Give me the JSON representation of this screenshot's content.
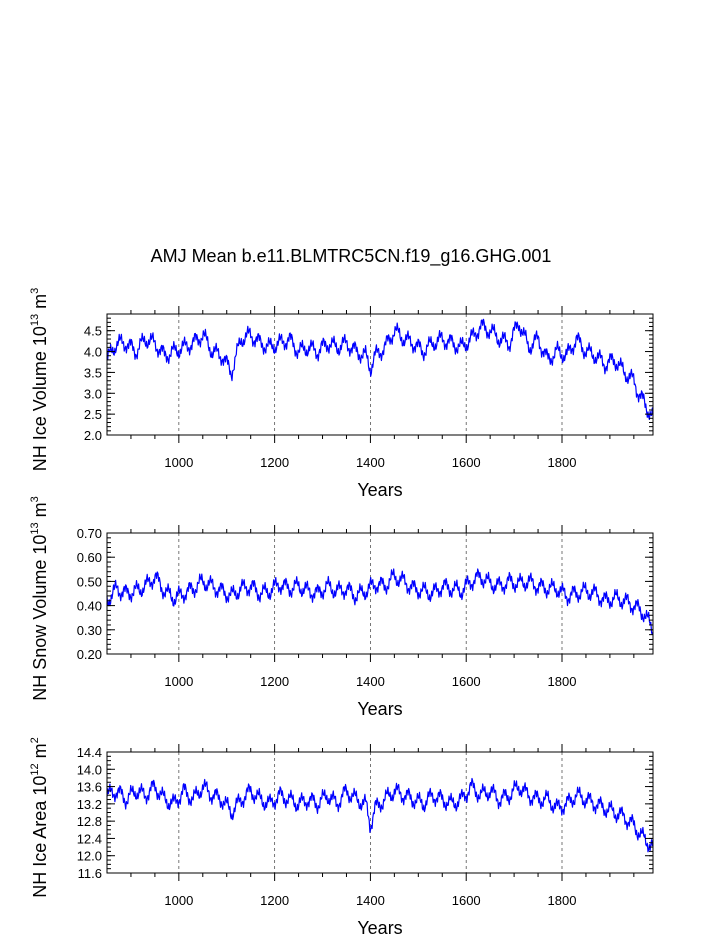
{
  "figure": {
    "title": "AMJ Mean b.e11.BLMTRC5CN.f19_g16.GHG.001",
    "line_color": "#0000ff"
  },
  "chart_data": [
    {
      "type": "line",
      "id": "ice-volume",
      "ylabel": {
        "prefix": "NH Ice Volume 10",
        "exp1": "13",
        "mid": " m",
        "exp2": "3"
      },
      "xlabel": "Years",
      "xlim": [
        850,
        1990
      ],
      "ylim": [
        2.0,
        4.9
      ],
      "xticks": [
        1000,
        1200,
        1400,
        1600,
        1800
      ],
      "yticks": [
        2.0,
        2.5,
        3.0,
        3.5,
        4.0,
        4.5
      ],
      "ytick_labels": [
        "2.0",
        "2.5",
        "3.0",
        "3.5",
        "4.0",
        "4.5"
      ],
      "yminor_step": 0.1,
      "grid_x": true,
      "x": [
        850,
        870,
        890,
        910,
        930,
        950,
        970,
        990,
        1010,
        1030,
        1050,
        1070,
        1090,
        1110,
        1130,
        1150,
        1170,
        1190,
        1210,
        1230,
        1250,
        1270,
        1290,
        1310,
        1330,
        1350,
        1370,
        1390,
        1400,
        1410,
        1430,
        1450,
        1470,
        1490,
        1510,
        1530,
        1550,
        1570,
        1590,
        1610,
        1630,
        1650,
        1670,
        1690,
        1710,
        1730,
        1750,
        1770,
        1790,
        1810,
        1830,
        1850,
        1870,
        1890,
        1910,
        1930,
        1950,
        1960,
        1970,
        1980,
        1990
      ],
      "y": [
        3.8,
        4.2,
        4.2,
        4.0,
        4.3,
        4.2,
        3.9,
        4.0,
        4.1,
        4.2,
        4.4,
        4.0,
        3.9,
        3.5,
        4.3,
        4.4,
        4.2,
        4.1,
        4.2,
        4.3,
        4.0,
        4.1,
        4.0,
        4.2,
        4.1,
        4.2,
        4.0,
        3.9,
        3.6,
        3.9,
        4.1,
        4.5,
        4.3,
        4.2,
        4.0,
        4.2,
        4.3,
        4.2,
        4.1,
        4.3,
        4.6,
        4.5,
        4.3,
        4.2,
        4.7,
        4.1,
        4.3,
        3.8,
        4.0,
        3.9,
        4.3,
        4.0,
        3.9,
        3.7,
        3.8,
        3.5,
        3.3,
        3.0,
        2.8,
        2.6,
        2.4
      ]
    },
    {
      "type": "line",
      "id": "snow-volume",
      "ylabel": {
        "prefix": "NH Snow Volume 10",
        "exp1": "13",
        "mid": " m",
        "exp2": "3"
      },
      "xlabel": "Years",
      "xlim": [
        850,
        1990
      ],
      "ylim": [
        0.2,
        0.7
      ],
      "xticks": [
        1000,
        1200,
        1400,
        1600,
        1800
      ],
      "yticks": [
        0.2,
        0.3,
        0.4,
        0.5,
        0.6,
        0.7
      ],
      "ytick_labels": [
        "0.20",
        "0.30",
        "0.40",
        "0.50",
        "0.60",
        "0.70"
      ],
      "yminor_step": 0.02,
      "grid_x": true,
      "x": [
        850,
        870,
        890,
        910,
        930,
        950,
        970,
        990,
        1010,
        1030,
        1050,
        1070,
        1090,
        1110,
        1130,
        1150,
        1170,
        1190,
        1210,
        1230,
        1250,
        1270,
        1290,
        1310,
        1330,
        1350,
        1370,
        1390,
        1410,
        1430,
        1450,
        1470,
        1490,
        1510,
        1530,
        1550,
        1570,
        1590,
        1610,
        1630,
        1650,
        1670,
        1690,
        1710,
        1730,
        1750,
        1770,
        1790,
        1810,
        1830,
        1850,
        1870,
        1890,
        1910,
        1930,
        1950,
        1970,
        1990
      ],
      "y": [
        0.42,
        0.47,
        0.45,
        0.46,
        0.48,
        0.52,
        0.46,
        0.43,
        0.45,
        0.47,
        0.5,
        0.48,
        0.46,
        0.44,
        0.47,
        0.48,
        0.45,
        0.46,
        0.49,
        0.47,
        0.48,
        0.46,
        0.45,
        0.48,
        0.46,
        0.47,
        0.44,
        0.46,
        0.49,
        0.48,
        0.52,
        0.5,
        0.47,
        0.46,
        0.45,
        0.48,
        0.47,
        0.46,
        0.5,
        0.52,
        0.49,
        0.48,
        0.5,
        0.49,
        0.5,
        0.48,
        0.47,
        0.47,
        0.44,
        0.45,
        0.46,
        0.45,
        0.42,
        0.43,
        0.42,
        0.4,
        0.37,
        0.3
      ]
    },
    {
      "type": "line",
      "id": "ice-area",
      "ylabel": {
        "prefix": "NH Ice Area 10",
        "exp1": "12",
        "mid": " m",
        "exp2": "2"
      },
      "xlabel": "Years",
      "xlim": [
        850,
        1990
      ],
      "ylim": [
        11.6,
        14.4
      ],
      "xticks": [
        1000,
        1200,
        1400,
        1600,
        1800
      ],
      "yticks": [
        11.6,
        12.0,
        12.4,
        12.8,
        13.2,
        13.6,
        14.0,
        14.4
      ],
      "ytick_labels": [
        "11.6",
        "12.0",
        "12.4",
        "12.8",
        "13.2",
        "13.6",
        "14.0",
        "14.4"
      ],
      "yminor_step": 0.1,
      "grid_x": true,
      "x": [
        850,
        870,
        890,
        910,
        930,
        950,
        970,
        990,
        1010,
        1030,
        1050,
        1070,
        1090,
        1110,
        1130,
        1150,
        1170,
        1190,
        1210,
        1230,
        1250,
        1270,
        1290,
        1310,
        1330,
        1350,
        1370,
        1390,
        1400,
        1410,
        1430,
        1450,
        1470,
        1490,
        1510,
        1530,
        1550,
        1570,
        1590,
        1610,
        1630,
        1650,
        1670,
        1690,
        1710,
        1730,
        1750,
        1770,
        1790,
        1810,
        1830,
        1850,
        1870,
        1890,
        1910,
        1930,
        1950,
        1970,
        1990
      ],
      "y": [
        13.4,
        13.5,
        13.3,
        13.5,
        13.4,
        13.6,
        13.3,
        13.2,
        13.5,
        13.3,
        13.6,
        13.4,
        13.3,
        13.0,
        13.3,
        13.5,
        13.3,
        13.2,
        13.4,
        13.3,
        13.2,
        13.3,
        13.2,
        13.4,
        13.2,
        13.5,
        13.3,
        13.2,
        12.7,
        13.1,
        13.3,
        13.5,
        13.4,
        13.3,
        13.2,
        13.4,
        13.3,
        13.2,
        13.3,
        13.6,
        13.4,
        13.5,
        13.3,
        13.4,
        13.6,
        13.4,
        13.3,
        13.3,
        13.1,
        13.2,
        13.4,
        13.3,
        13.2,
        13.1,
        13.0,
        12.9,
        12.7,
        12.4,
        12.2
      ]
    }
  ]
}
